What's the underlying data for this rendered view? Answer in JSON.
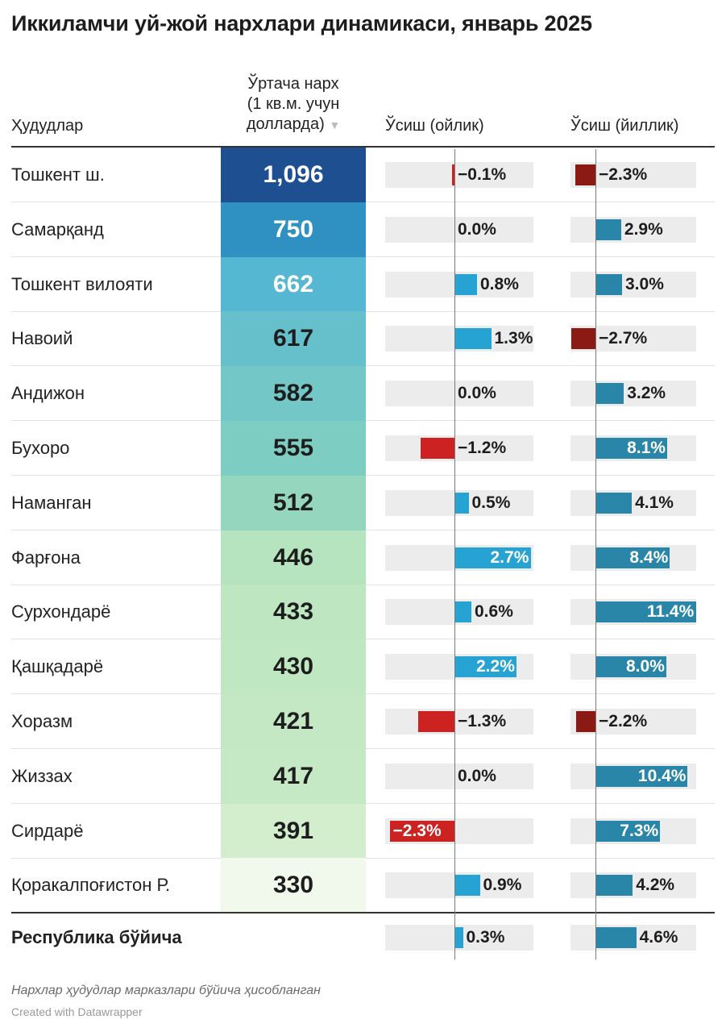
{
  "title": "Иккиламчи уй-жой нархлари динамикаси, январь 2025",
  "headers": {
    "region": "Ҳудудлар",
    "price_lines": [
      "Ўртача нарх",
      "(1 кв.м. учун",
      "долларда)"
    ],
    "sort_arrow": "▼",
    "monthly": "Ўсиш (ойлик)",
    "yearly": "Ўсиш (йиллик)"
  },
  "colors": {
    "heat_scale": [
      "#f1f9ed",
      "#cdecc7",
      "#a9dfb9",
      "#7bccc4",
      "#4eb3d3",
      "#2b8cbe",
      "#1d4f91"
    ],
    "monthly_positive": "#26a3d2",
    "yearly_positive": "#2a86a8",
    "monthly_negative": "#cc2222",
    "yearly_negative": "#8b1a14",
    "bar_background": "#ececec"
  },
  "chart_data": {
    "type": "table",
    "title": "Иккиламчи уй-жой нархлари динамикаси, январь 2025",
    "columns": [
      "Ҳудудлар",
      "Ўртача нарх (1 кв.м. учун долларда)",
      "Ўсиш (ойлик)",
      "Ўсиш (йиллик)"
    ],
    "rows": [
      {
        "region": "Тошкент ш.",
        "price": 1096,
        "price_label": "1,096",
        "monthly": -0.1,
        "monthly_label": "−0.1%",
        "yearly": -2.3,
        "yearly_label": "−2.3%"
      },
      {
        "region": "Самарқанд",
        "price": 750,
        "price_label": "750",
        "monthly": 0.0,
        "monthly_label": "0.0%",
        "yearly": 2.9,
        "yearly_label": "2.9%"
      },
      {
        "region": "Тошкент вилояти",
        "price": 662,
        "price_label": "662",
        "monthly": 0.8,
        "monthly_label": "0.8%",
        "yearly": 3.0,
        "yearly_label": "3.0%"
      },
      {
        "region": "Навоий",
        "price": 617,
        "price_label": "617",
        "monthly": 1.3,
        "monthly_label": "1.3%",
        "yearly": -2.7,
        "yearly_label": "−2.7%"
      },
      {
        "region": "Андижон",
        "price": 582,
        "price_label": "582",
        "monthly": 0.0,
        "monthly_label": "0.0%",
        "yearly": 3.2,
        "yearly_label": "3.2%"
      },
      {
        "region": "Бухоро",
        "price": 555,
        "price_label": "555",
        "monthly": -1.2,
        "monthly_label": "−1.2%",
        "yearly": 8.1,
        "yearly_label": "8.1%"
      },
      {
        "region": "Наманган",
        "price": 512,
        "price_label": "512",
        "monthly": 0.5,
        "monthly_label": "0.5%",
        "yearly": 4.1,
        "yearly_label": "4.1%"
      },
      {
        "region": "Фарғона",
        "price": 446,
        "price_label": "446",
        "monthly": 2.7,
        "monthly_label": "2.7%",
        "yearly": 8.4,
        "yearly_label": "8.4%"
      },
      {
        "region": "Сурхондарё",
        "price": 433,
        "price_label": "433",
        "monthly": 0.6,
        "monthly_label": "0.6%",
        "yearly": 11.4,
        "yearly_label": "11.4%"
      },
      {
        "region": "Қашқадарё",
        "price": 430,
        "price_label": "430",
        "monthly": 2.2,
        "monthly_label": "2.2%",
        "yearly": 8.0,
        "yearly_label": "8.0%"
      },
      {
        "region": "Хоразм",
        "price": 421,
        "price_label": "421",
        "monthly": -1.3,
        "monthly_label": "−1.3%",
        "yearly": -2.2,
        "yearly_label": "−2.2%"
      },
      {
        "region": "Жиззах",
        "price": 417,
        "price_label": "417",
        "monthly": 0.0,
        "monthly_label": "0.0%",
        "yearly": 10.4,
        "yearly_label": "10.4%"
      },
      {
        "region": "Сирдарё",
        "price": 391,
        "price_label": "391",
        "monthly": -2.3,
        "monthly_label": "−2.3%",
        "yearly": 7.3,
        "yearly_label": "7.3%"
      },
      {
        "region": "Қоракалпоғистон Р.",
        "price": 330,
        "price_label": "330",
        "monthly": 0.9,
        "monthly_label": "0.9%",
        "yearly": 4.2,
        "yearly_label": "4.2%"
      }
    ],
    "total": {
      "region": "Республика бўйича",
      "monthly": 0.3,
      "monthly_label": "0.3%",
      "yearly": 4.6,
      "yearly_label": "4.6%"
    },
    "monthly_range": [
      -2.3,
      2.7
    ],
    "yearly_range": [
      -2.7,
      11.4
    ]
  },
  "footer": {
    "note": "Нархлар ҳудудлар марказлари бўйича ҳисобланган",
    "credit": "Created with Datawrapper"
  }
}
